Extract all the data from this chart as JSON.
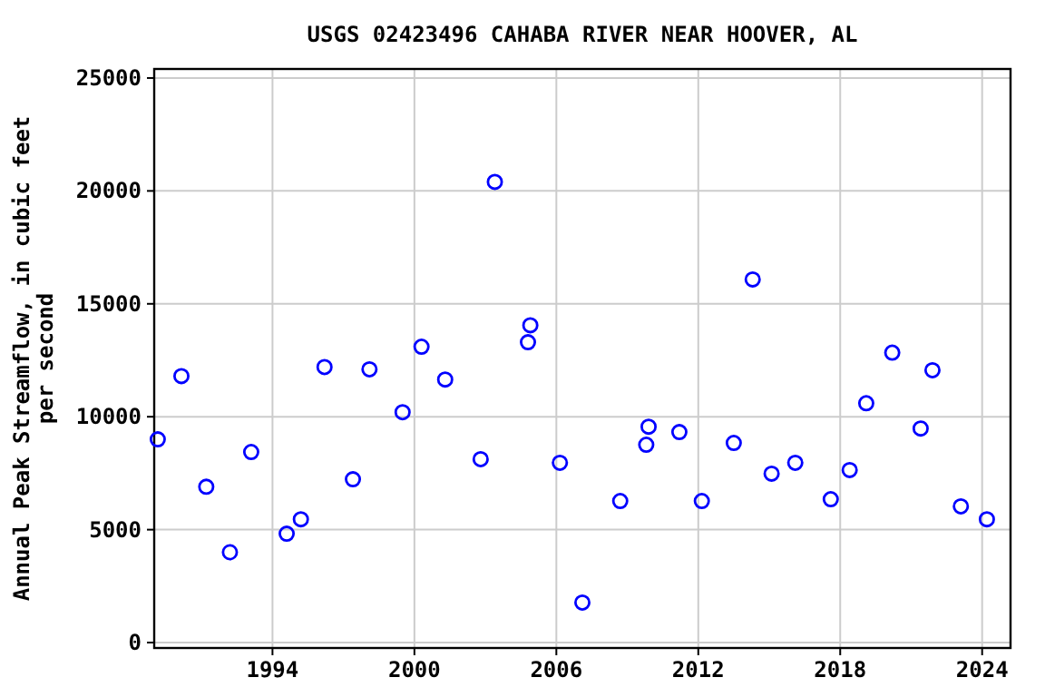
{
  "chart_data": {
    "type": "scatter",
    "title": "USGS 02423496 CAHABA RIVER NEAR HOOVER, AL",
    "ylabel": "Annual Peak Streamflow, in cubic feet per second",
    "xlim": [
      1989.0,
      2025.2
    ],
    "xticks": [
      1994,
      2000,
      2006,
      2012,
      2018,
      2024
    ],
    "ylim": [
      -240,
      25400
    ],
    "yticks": [
      0,
      5000,
      10000,
      15000,
      20000,
      25000
    ],
    "grid": true,
    "marker": "circle",
    "series": [
      {
        "color": "#0000ff",
        "x": [
          1989.15,
          1990.15,
          1991.2,
          1992.2,
          1993.1,
          1994.6,
          1995.2,
          1996.2,
          1997.4,
          1998.1,
          1999.5,
          2000.3,
          2001.3,
          2002.8,
          2003.4,
          2004.8,
          2004.9,
          2006.15,
          2007.1,
          2008.7,
          2009.8,
          2009.9,
          2011.2,
          2012.15,
          2013.5,
          2014.3,
          2015.1,
          2016.1,
          2017.6,
          2018.4,
          2019.1,
          2020.2,
          2021.4,
          2021.9,
          2023.1,
          2024.2
        ],
        "values": [
          9000,
          11800,
          6900,
          4000,
          8440,
          4820,
          5460,
          12200,
          7230,
          12100,
          10200,
          13100,
          11650,
          8120,
          20400,
          13300,
          14050,
          7960,
          1770,
          6270,
          8760,
          9560,
          9320,
          6270,
          8840,
          16080,
          7480,
          7960,
          6350,
          7640,
          10600,
          12840,
          9480,
          12060,
          6030,
          5460
        ]
      }
    ]
  }
}
